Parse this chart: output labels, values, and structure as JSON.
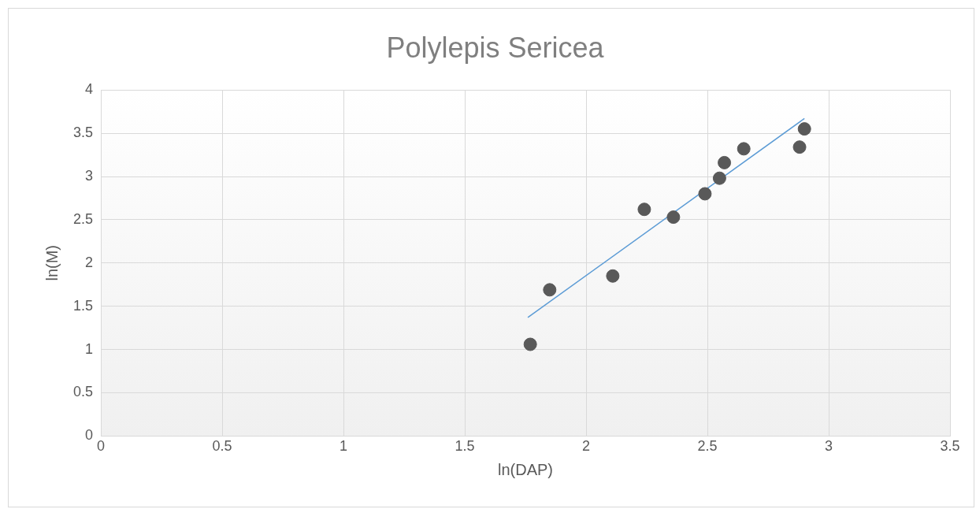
{
  "chart_data": {
    "type": "scatter",
    "title": "Polylepis Sericea",
    "xlabel": "ln(DAP)",
    "ylabel": "ln(M)",
    "xlim": [
      0,
      3.5
    ],
    "xticks": [
      0,
      0.5,
      1,
      1.5,
      2,
      2.5,
      3,
      3.5
    ],
    "ylim": [
      0,
      4
    ],
    "yticks": [
      0,
      0.5,
      1,
      1.5,
      2,
      2.5,
      3,
      3.5,
      4
    ],
    "grid": true,
    "legend": false,
    "marker": "circle",
    "series": [
      {
        "color": "#595959",
        "x": [
          1.77,
          1.85,
          2.11,
          2.24,
          2.36,
          2.49,
          2.55,
          2.57,
          2.65,
          2.88,
          2.9
        ],
        "values": [
          1.06,
          1.69,
          1.85,
          2.62,
          2.53,
          2.8,
          2.98,
          3.16,
          3.32,
          3.34,
          3.55
        ]
      },
      {
        "type": "line",
        "color": "#5b9bd5",
        "marker": "none",
        "x": [
          1.76,
          2.9
        ],
        "values": [
          1.37,
          3.67
        ]
      }
    ]
  }
}
